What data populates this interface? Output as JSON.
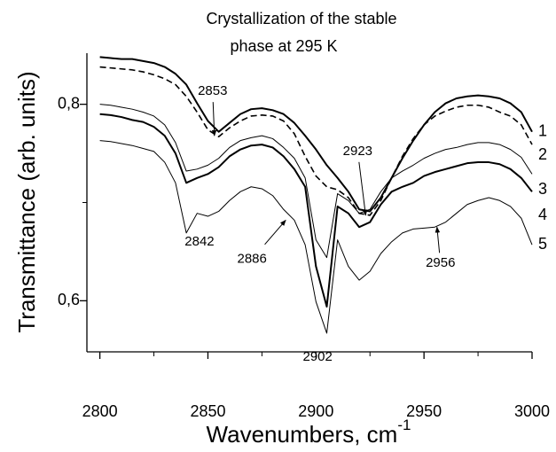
{
  "chart_data": {
    "type": "line",
    "title": [
      "Crystallization of the stable",
      "phase at 295 K"
    ],
    "xlabel": "Wavenumbers, cm",
    "xlabel_sup": "-1",
    "ylabel": "Transmittance (arb. units)",
    "xlim": [
      2794,
      3000
    ],
    "ylim": [
      0.548,
      0.852
    ],
    "xticks": [
      2800,
      2850,
      2900,
      2950,
      3000
    ],
    "xminor": [
      2825,
      2875,
      2925,
      2975
    ],
    "yticks": [
      {
        "value": 0.6,
        "label": "0,6"
      },
      {
        "value": 0.8,
        "label": "0,8"
      }
    ],
    "yminor": [
      0.7
    ],
    "x": [
      2800,
      2805,
      2810,
      2815,
      2820,
      2825,
      2830,
      2835,
      2840,
      2845,
      2850,
      2855,
      2860,
      2865,
      2870,
      2875,
      2880,
      2885,
      2890,
      2895,
      2900,
      2905,
      2910,
      2915,
      2920,
      2925,
      2930,
      2935,
      2940,
      2945,
      2950,
      2955,
      2960,
      2965,
      2970,
      2975,
      2980,
      2985,
      2990,
      2995,
      3000
    ],
    "series": [
      {
        "name": "1",
        "color": "#000000",
        "line_width": 2,
        "style": "solid",
        "values": [
          0.848,
          0.847,
          0.846,
          0.846,
          0.844,
          0.842,
          0.838,
          0.831,
          0.82,
          0.801,
          0.783,
          0.772,
          0.781,
          0.79,
          0.795,
          0.796,
          0.794,
          0.79,
          0.781,
          0.768,
          0.754,
          0.738,
          0.725,
          0.711,
          0.693,
          0.691,
          0.705,
          0.725,
          0.745,
          0.763,
          0.779,
          0.792,
          0.801,
          0.806,
          0.808,
          0.809,
          0.808,
          0.806,
          0.801,
          0.792,
          0.772
        ]
      },
      {
        "name": "2",
        "color": "#000000",
        "line_width": 1.6,
        "style": "dashed",
        "values": [
          0.838,
          0.837,
          0.836,
          0.835,
          0.833,
          0.83,
          0.826,
          0.82,
          0.808,
          0.792,
          0.774,
          0.767,
          0.776,
          0.783,
          0.788,
          0.789,
          0.788,
          0.783,
          0.77,
          0.747,
          0.727,
          0.716,
          0.713,
          0.705,
          0.689,
          0.687,
          0.702,
          0.725,
          0.747,
          0.765,
          0.779,
          0.788,
          0.793,
          0.797,
          0.799,
          0.799,
          0.797,
          0.792,
          0.788,
          0.779,
          0.759
        ]
      },
      {
        "name": "3",
        "color": "#000000",
        "line_width": 1,
        "style": "solid",
        "values": [
          0.8,
          0.799,
          0.797,
          0.795,
          0.792,
          0.788,
          0.779,
          0.761,
          0.732,
          0.734,
          0.738,
          0.745,
          0.756,
          0.763,
          0.766,
          0.768,
          0.765,
          0.756,
          0.745,
          0.725,
          0.662,
          0.644,
          0.709,
          0.702,
          0.689,
          0.693,
          0.711,
          0.725,
          0.732,
          0.738,
          0.745,
          0.75,
          0.754,
          0.756,
          0.759,
          0.761,
          0.761,
          0.759,
          0.754,
          0.746,
          0.729
        ]
      },
      {
        "name": "4",
        "color": "#000000",
        "line_width": 2,
        "style": "solid",
        "values": [
          0.79,
          0.789,
          0.787,
          0.784,
          0.782,
          0.777,
          0.768,
          0.75,
          0.72,
          0.725,
          0.729,
          0.736,
          0.747,
          0.754,
          0.758,
          0.759,
          0.756,
          0.747,
          0.734,
          0.716,
          0.635,
          0.594,
          0.696,
          0.689,
          0.675,
          0.68,
          0.698,
          0.711,
          0.716,
          0.72,
          0.727,
          0.731,
          0.734,
          0.737,
          0.74,
          0.741,
          0.741,
          0.739,
          0.734,
          0.725,
          0.711
        ]
      },
      {
        "name": "5",
        "color": "#000000",
        "line_width": 1,
        "style": "solid",
        "values": [
          0.763,
          0.762,
          0.76,
          0.758,
          0.755,
          0.752,
          0.741,
          0.72,
          0.669,
          0.689,
          0.686,
          0.691,
          0.702,
          0.711,
          0.716,
          0.714,
          0.707,
          0.693,
          0.682,
          0.657,
          0.599,
          0.567,
          0.662,
          0.635,
          0.621,
          0.63,
          0.648,
          0.66,
          0.669,
          0.673,
          0.674,
          0.675,
          0.68,
          0.689,
          0.698,
          0.702,
          0.705,
          0.702,
          0.696,
          0.684,
          0.657
        ]
      }
    ],
    "annotations": [
      {
        "x": 2853,
        "y": 0.768,
        "arrow": true
      },
      {
        "x": 2923,
        "y": 0.687,
        "arrow": true
      },
      {
        "x": 2842,
        "y": 0.669,
        "arrow": false
      },
      {
        "x": 2886,
        "y": 0.682,
        "arrow": true
      },
      {
        "x": 2902,
        "y": 0.567,
        "arrow": false
      },
      {
        "x": 2956,
        "y": 0.675,
        "arrow": true
      }
    ]
  }
}
